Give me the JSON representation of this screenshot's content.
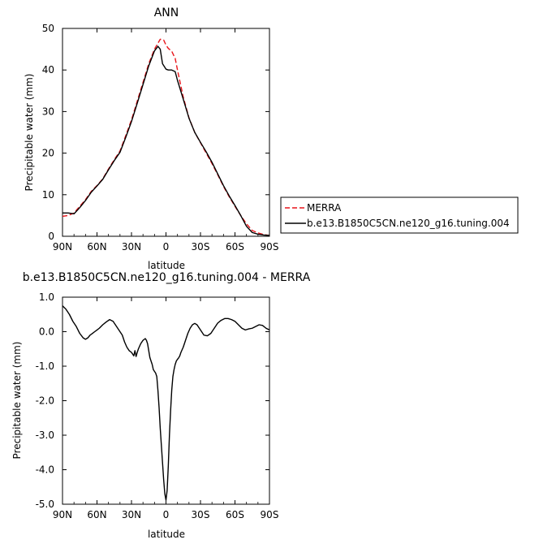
{
  "chart_data": [
    {
      "type": "line",
      "title": "ANN",
      "xlabel": "latitude",
      "ylabel": "Precipitable water (mm)",
      "xlim": [
        90,
        -90
      ],
      "ylim": [
        0,
        50
      ],
      "x_ticks": [
        90,
        60,
        30,
        0,
        -30,
        -60,
        -90
      ],
      "x_tick_labels": [
        "90N",
        "60N",
        "30N",
        "0",
        "30S",
        "60S",
        "90S"
      ],
      "y_ticks": [
        0,
        10,
        20,
        30,
        40,
        50
      ],
      "y_tick_labels": [
        "0",
        "10",
        "20",
        "30",
        "40",
        "50"
      ],
      "grid": false,
      "legend_position": "right",
      "series": [
        {
          "name": "MERRA",
          "color": "#e8141a",
          "dash": "dashed",
          "x": [
            90,
            85,
            80,
            75,
            70,
            65,
            60,
            55,
            50,
            45,
            40,
            35,
            30,
            25,
            20,
            15,
            10,
            5,
            2,
            0,
            -2,
            -5,
            -8,
            -10,
            -15,
            -20,
            -25,
            -30,
            -35,
            -40,
            -45,
            -50,
            -55,
            -60,
            -65,
            -70,
            -75,
            -80,
            -85,
            -90
          ],
          "y": [
            4.8,
            5.0,
            5.6,
            7.2,
            8.8,
            10.8,
            12.2,
            13.8,
            16.2,
            18.4,
            20.5,
            24.2,
            28.0,
            32.5,
            37.0,
            41.5,
            45.0,
            47.4,
            47.2,
            46.0,
            45.2,
            44.5,
            42.8,
            40.0,
            33.5,
            28.5,
            25.0,
            22.5,
            20.0,
            17.5,
            14.8,
            12.0,
            9.5,
            7.2,
            5.0,
            3.0,
            1.4,
            0.8,
            0.4,
            0.2
          ]
        },
        {
          "name": "b.e13.B1850C5CN.ne120_g16.tuning.004",
          "color": "#000000",
          "dash": "solid",
          "x": [
            90,
            85,
            80,
            75,
            70,
            65,
            60,
            55,
            50,
            45,
            40,
            35,
            30,
            25,
            20,
            15,
            10,
            7,
            5,
            3,
            0,
            -2,
            -5,
            -8,
            -10,
            -15,
            -20,
            -25,
            -30,
            -35,
            -40,
            -45,
            -50,
            -55,
            -60,
            -65,
            -70,
            -75,
            -80,
            -85,
            -90
          ],
          "y": [
            5.6,
            5.6,
            5.4,
            6.9,
            8.6,
            10.6,
            12.1,
            13.7,
            16.0,
            18.2,
            20.2,
            23.8,
            27.6,
            32.0,
            36.5,
            41.0,
            44.6,
            45.7,
            45.0,
            41.5,
            40.2,
            40.0,
            40.0,
            39.6,
            37.5,
            33.0,
            28.4,
            25.0,
            22.6,
            20.3,
            17.8,
            15.0,
            12.2,
            9.7,
            7.4,
            5.0,
            2.4,
            0.9,
            0.5,
            0.3,
            0.2
          ]
        }
      ]
    },
    {
      "type": "line",
      "title": "b.e13.B1850C5CN.ne120_g16.tuning.004 - MERRA",
      "xlabel": "latitude",
      "ylabel": "Precipitable water (mm)",
      "xlim": [
        90,
        -90
      ],
      "ylim": [
        -5.0,
        1.0
      ],
      "x_ticks": [
        90,
        60,
        30,
        0,
        -30,
        -60,
        -90
      ],
      "x_tick_labels": [
        "90N",
        "60N",
        "30N",
        "0",
        "30S",
        "60S",
        "90S"
      ],
      "y_ticks": [
        1.0,
        0.0,
        -1.0,
        -2.0,
        -3.0,
        -4.0,
        -5.0
      ],
      "y_tick_labels": [
        "1.0",
        "0.0",
        "-1.0",
        "-2.0",
        "-3.0",
        "-4.0",
        "-5.0"
      ],
      "grid": false,
      "series": [
        {
          "name": "",
          "color": "#000000",
          "dash": "solid",
          "x": [
            90,
            87,
            84,
            81,
            78,
            75,
            72,
            70,
            68,
            66,
            64,
            62,
            60,
            58,
            55,
            52,
            49,
            46,
            44,
            42,
            40,
            38,
            36,
            34,
            32,
            30,
            28,
            27,
            26,
            25,
            24,
            22,
            20,
            18,
            17,
            16,
            15,
            14,
            13,
            12,
            11,
            10,
            9,
            8,
            7,
            6,
            5,
            4,
            3,
            2,
            1,
            0,
            -1,
            -2,
            -3,
            -4,
            -5,
            -6,
            -7,
            -8,
            -9,
            -10,
            -11,
            -12,
            -13,
            -15,
            -17,
            -19,
            -21,
            -23,
            -25,
            -27,
            -30,
            -33,
            -36,
            -39,
            -42,
            -45,
            -48,
            -51,
            -54,
            -57,
            -60,
            -63,
            -66,
            -69,
            -72,
            -75,
            -78,
            -81,
            -84,
            -87,
            -90
          ],
          "y": [
            0.75,
            0.65,
            0.5,
            0.3,
            0.15,
            -0.05,
            -0.18,
            -0.22,
            -0.18,
            -0.1,
            -0.05,
            0.0,
            0.05,
            0.1,
            0.2,
            0.28,
            0.35,
            0.3,
            0.2,
            0.1,
            0.0,
            -0.1,
            -0.3,
            -0.45,
            -0.55,
            -0.6,
            -0.7,
            -0.55,
            -0.72,
            -0.6,
            -0.5,
            -0.35,
            -0.25,
            -0.2,
            -0.25,
            -0.35,
            -0.55,
            -0.75,
            -0.85,
            -0.95,
            -1.1,
            -1.15,
            -1.2,
            -1.3,
            -1.7,
            -2.2,
            -2.8,
            -3.3,
            -3.8,
            -4.3,
            -4.7,
            -4.88,
            -4.6,
            -3.9,
            -3.0,
            -2.3,
            -1.7,
            -1.3,
            -1.1,
            -0.95,
            -0.85,
            -0.8,
            -0.76,
            -0.7,
            -0.6,
            -0.45,
            -0.25,
            -0.05,
            0.1,
            0.2,
            0.24,
            0.2,
            0.05,
            -0.1,
            -0.12,
            -0.05,
            0.1,
            0.25,
            0.33,
            0.38,
            0.38,
            0.35,
            0.3,
            0.2,
            0.1,
            0.05,
            0.08,
            0.1,
            0.15,
            0.2,
            0.18,
            0.1,
            0.05
          ]
        }
      ]
    }
  ]
}
